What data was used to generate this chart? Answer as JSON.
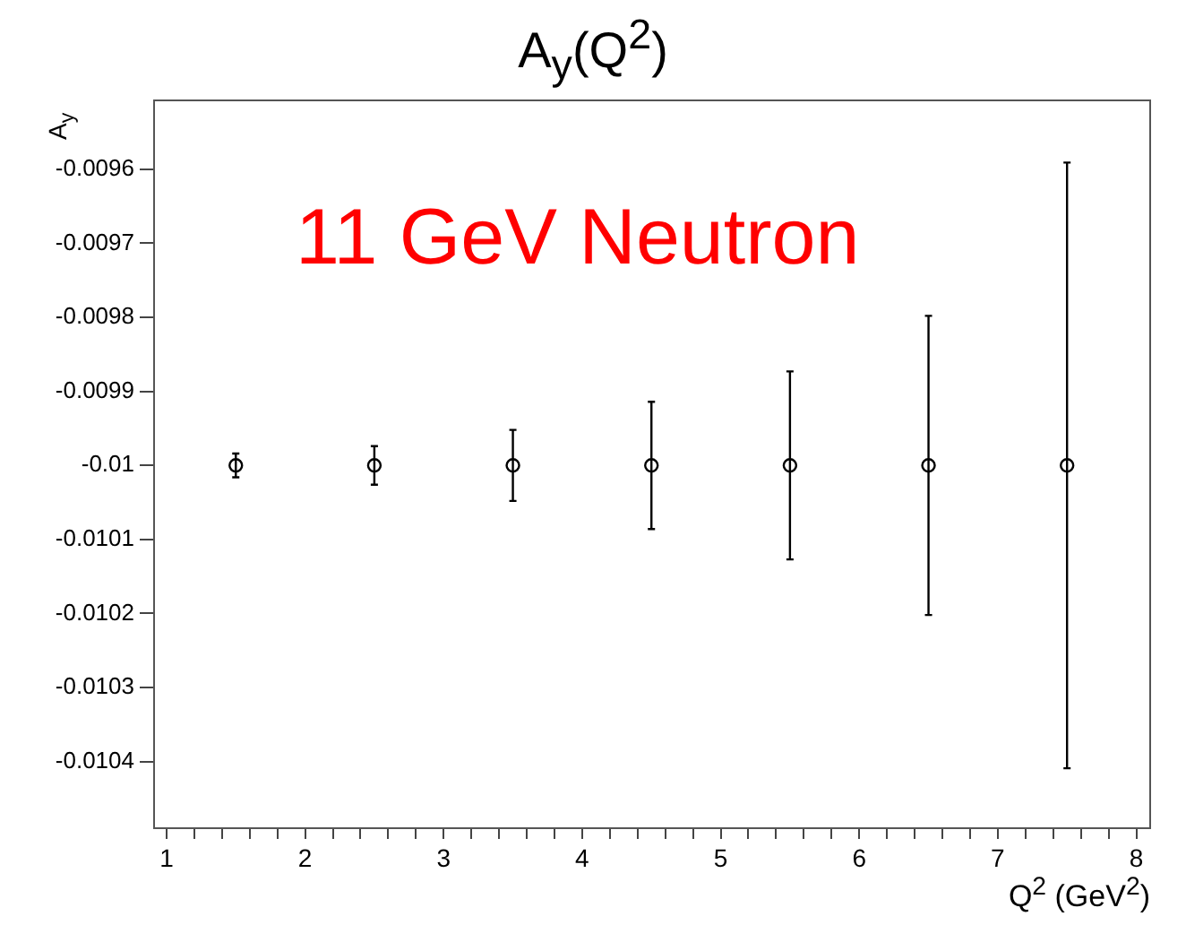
{
  "chart_data": {
    "type": "scatter",
    "title": "A$_{y}$(Q$^{2}$)",
    "xlabel": "Q$^{2}$ (GeV$^{2}$)",
    "ylabel": "A$_{y}$",
    "annotations": [
      "11 GeV Neutron"
    ],
    "x": [
      1.5,
      2.5,
      3.5,
      4.5,
      5.5,
      6.5,
      7.5
    ],
    "series": [
      {
        "color": "#000000",
        "values": [
          -0.01,
          -0.01,
          -0.01,
          -0.01,
          -0.01,
          -0.01,
          -0.01
        ],
        "errors": [
          1.6e-05,
          2.6e-05,
          4.8e-05,
          8.6e-05,
          0.000127,
          0.000202,
          0.000409
        ]
      }
    ],
    "xlim": [
      0.91,
      8.1
    ],
    "ylim": [
      -0.01049,
      -0.009507
    ],
    "xticks": [
      1,
      {
        "value": 1.2,
        "label": null
      },
      {
        "value": 1.4,
        "label": null
      },
      {
        "value": 1.6,
        "label": null
      },
      {
        "value": 1.8,
        "label": null
      },
      2,
      {
        "value": 2.2,
        "label": null
      },
      {
        "value": 2.4,
        "label": null
      },
      {
        "value": 2.6,
        "label": null
      },
      {
        "value": 2.8,
        "label": null
      },
      3,
      {
        "value": 3.2,
        "label": null
      },
      {
        "value": 3.4,
        "label": null
      },
      {
        "value": 3.6,
        "label": null
      },
      {
        "value": 3.8,
        "label": null
      },
      4,
      {
        "value": 4.2,
        "label": null
      },
      {
        "value": 4.4,
        "label": null
      },
      {
        "value": 4.6,
        "label": null
      },
      {
        "value": 4.8,
        "label": null
      },
      5,
      {
        "value": 5.2,
        "label": null
      },
      {
        "value": 5.4,
        "label": null
      },
      {
        "value": 5.6,
        "label": null
      },
      {
        "value": 5.8,
        "label": null
      },
      6,
      {
        "value": 6.2,
        "label": null
      },
      {
        "value": 6.4,
        "label": null
      },
      {
        "value": 6.6,
        "label": null
      },
      {
        "value": 6.8,
        "label": null
      },
      7,
      {
        "value": 7.2,
        "label": null
      },
      {
        "value": 7.4,
        "label": null
      },
      {
        "value": 7.6,
        "label": null
      },
      {
        "value": 7.8,
        "label": null
      },
      8
    ],
    "yticks": [
      -0.0104,
      -0.0103,
      -0.0102,
      -0.0101,
      -0.01,
      -0.0099,
      -0.0098,
      -0.0097,
      -0.0096
    ],
    "grid": false,
    "legend": false,
    "marker": "circle"
  }
}
